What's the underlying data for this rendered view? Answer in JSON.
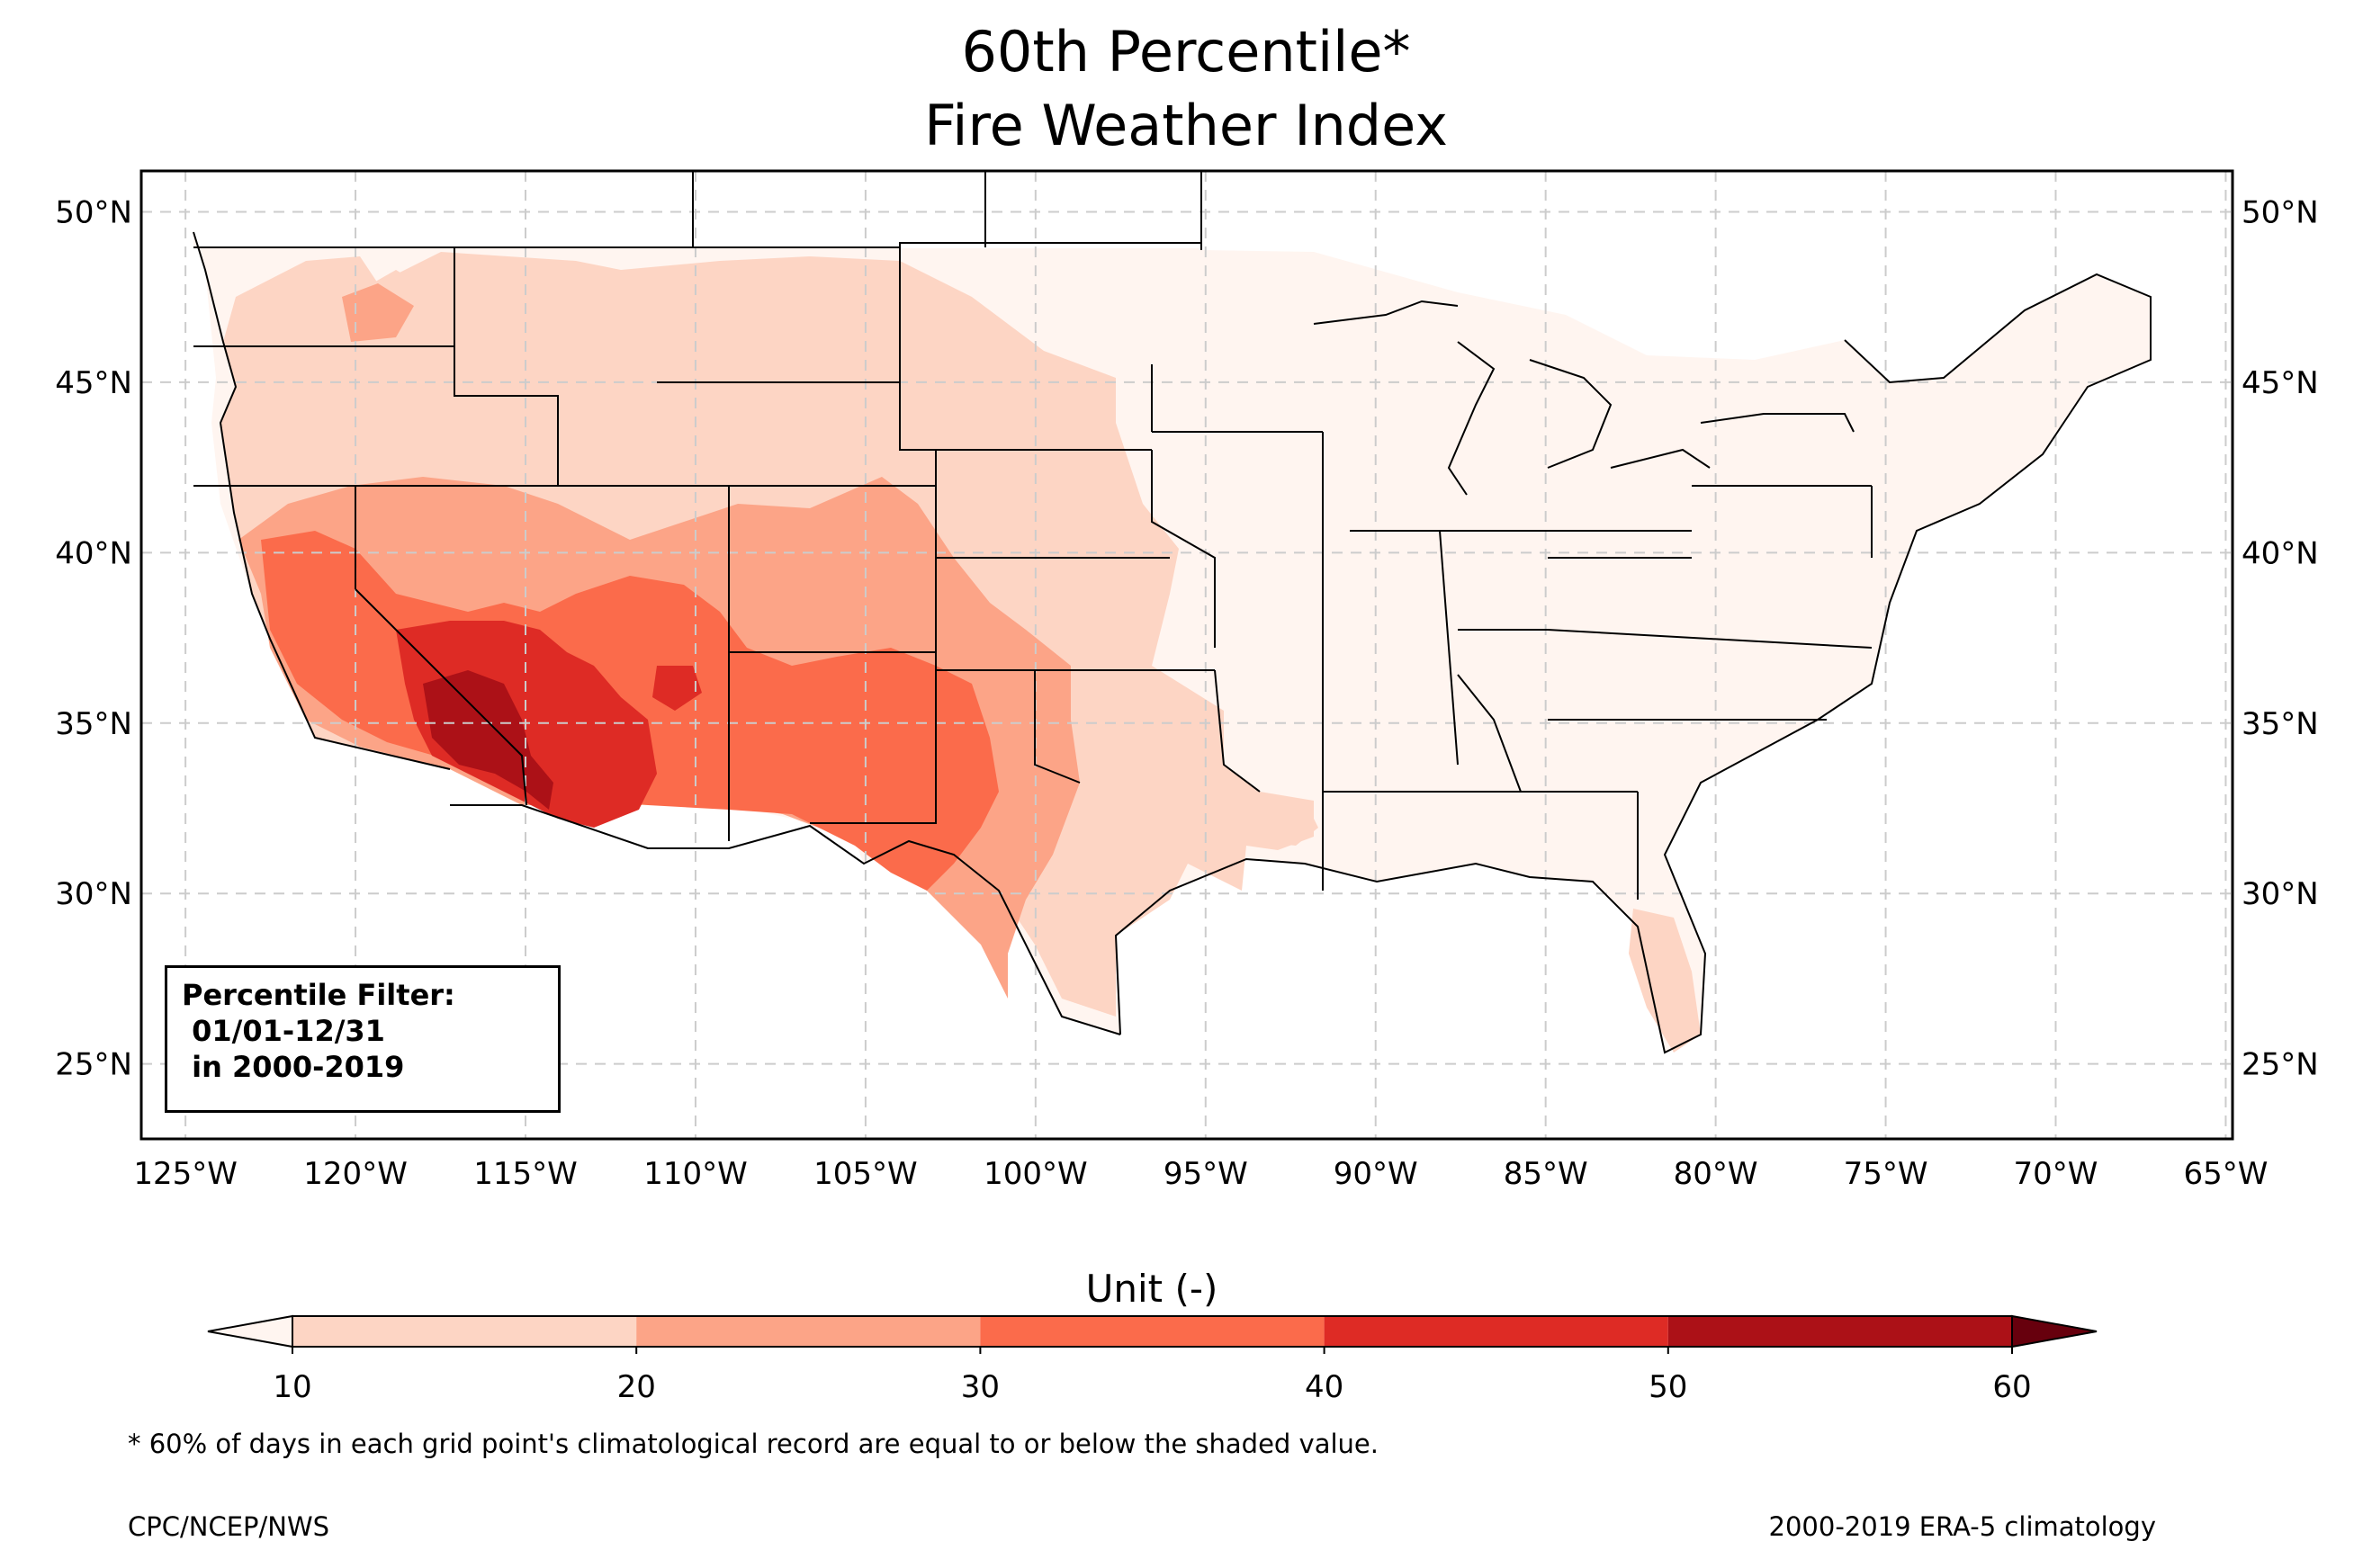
{
  "title": {
    "line1": "60th Percentile*",
    "line2": "Fire Weather Index"
  },
  "map": {
    "region": "CONUS",
    "projection": "PlateCarree",
    "lon_range": [
      -126.3,
      -64.8
    ],
    "lat_range": [
      22.8,
      51.2
    ],
    "gridlines": true,
    "lat_ticks": [
      {
        "value": 50,
        "label": "50°N"
      },
      {
        "value": 45,
        "label": "45°N"
      },
      {
        "value": 40,
        "label": "40°N"
      },
      {
        "value": 35,
        "label": "35°N"
      },
      {
        "value": 30,
        "label": "30°N"
      },
      {
        "value": 25,
        "label": "25°N"
      }
    ],
    "lon_ticks": [
      {
        "value": -125,
        "label": "125°W"
      },
      {
        "value": -120,
        "label": "120°W"
      },
      {
        "value": -115,
        "label": "115°W"
      },
      {
        "value": -110,
        "label": "110°W"
      },
      {
        "value": -105,
        "label": "105°W"
      },
      {
        "value": -100,
        "label": "100°W"
      },
      {
        "value": -95,
        "label": "95°W"
      },
      {
        "value": -90,
        "label": "90°W"
      },
      {
        "value": -85,
        "label": "85°W"
      },
      {
        "value": -80,
        "label": "80°W"
      },
      {
        "value": -75,
        "label": "75°W"
      },
      {
        "value": -70,
        "label": "70°W"
      },
      {
        "value": -65,
        "label": "65°W"
      }
    ],
    "regions": [
      {
        "name": "eastern-us-lowest",
        "class": "below-10",
        "color": "#fff5f0"
      },
      {
        "name": "northern-plains-west",
        "class": "10-20",
        "color": "#fdd5c4"
      },
      {
        "name": "southwest-plains",
        "class": "20-30",
        "color": "#fca487"
      },
      {
        "name": "desert-southwest-texas",
        "class": "30-40",
        "color": "#fb6b4b"
      },
      {
        "name": "lower-colorado-basin",
        "class": "40-50",
        "color": "#de2b25"
      },
      {
        "name": "colorado-river-core",
        "class": "50-60",
        "color": "#ac1117"
      }
    ]
  },
  "filter_box": {
    "text": "Percentile Filter:\n 01/01-12/31\n in 2000-2019"
  },
  "colorbar": {
    "label": "Unit (-)",
    "ticks": [
      "10",
      "20",
      "30",
      "40",
      "50",
      "60"
    ],
    "bins": [
      {
        "range": [
          10,
          20
        ],
        "color": "#fdd5c4"
      },
      {
        "range": [
          20,
          30
        ],
        "color": "#fca487"
      },
      {
        "range": [
          30,
          40
        ],
        "color": "#fb6b4b"
      },
      {
        "range": [
          40,
          50
        ],
        "color": "#de2b25"
      },
      {
        "range": [
          50,
          60
        ],
        "color": "#ac1117"
      }
    ],
    "under_color": "#fff5f0",
    "over_color": "#67000d"
  },
  "footnote": "* 60% of days in each grid point's climatological record are equal to or below the shaded value.",
  "credit_left": "CPC/NCEP/NWS",
  "credit_right": "2000-2019 ERA-5 climatology"
}
